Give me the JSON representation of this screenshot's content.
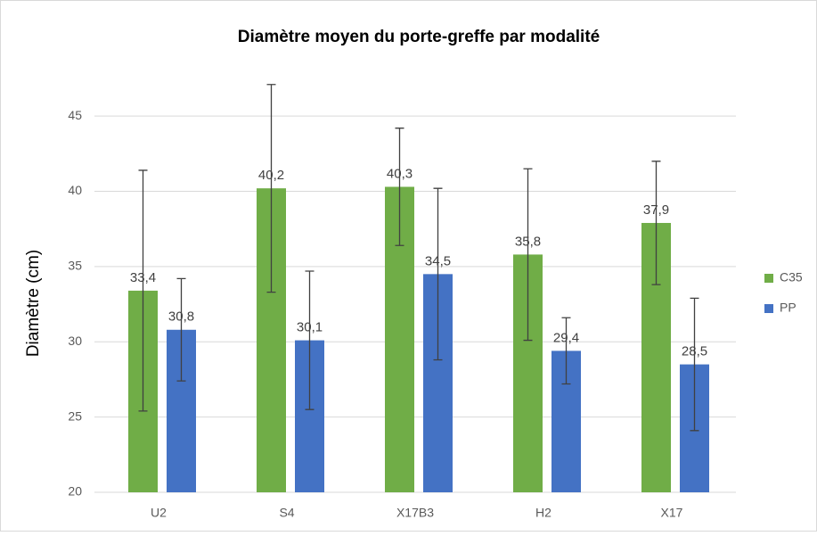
{
  "chart_data": {
    "type": "bar",
    "title": "Diamètre moyen du porte-greffe par modalité",
    "y_label": "Diamètre (cm)",
    "categories": [
      "U2",
      "S4",
      "X17B3",
      "H2",
      "X17"
    ],
    "series": [
      {
        "name": "C35",
        "color": "#70ad47",
        "values": [
          33.4,
          40.2,
          40.3,
          35.8,
          37.9
        ],
        "value_labels": [
          "33,4",
          "40,2",
          "40,3",
          "35,8",
          "37,9"
        ],
        "errors": [
          8.0,
          6.9,
          3.9,
          5.7,
          4.1
        ]
      },
      {
        "name": "PP",
        "color": "#4472c4",
        "values": [
          30.8,
          30.1,
          34.5,
          29.4,
          28.5
        ],
        "value_labels": [
          "30,8",
          "30,1",
          "34,5",
          "29,4",
          "28,5"
        ],
        "errors": [
          3.4,
          4.6,
          5.7,
          2.2,
          4.4
        ]
      }
    ],
    "ylim": [
      20,
      47.5
    ],
    "yticks": [
      20,
      25,
      30,
      35,
      40,
      45
    ],
    "grid": true,
    "legend": "right"
  }
}
